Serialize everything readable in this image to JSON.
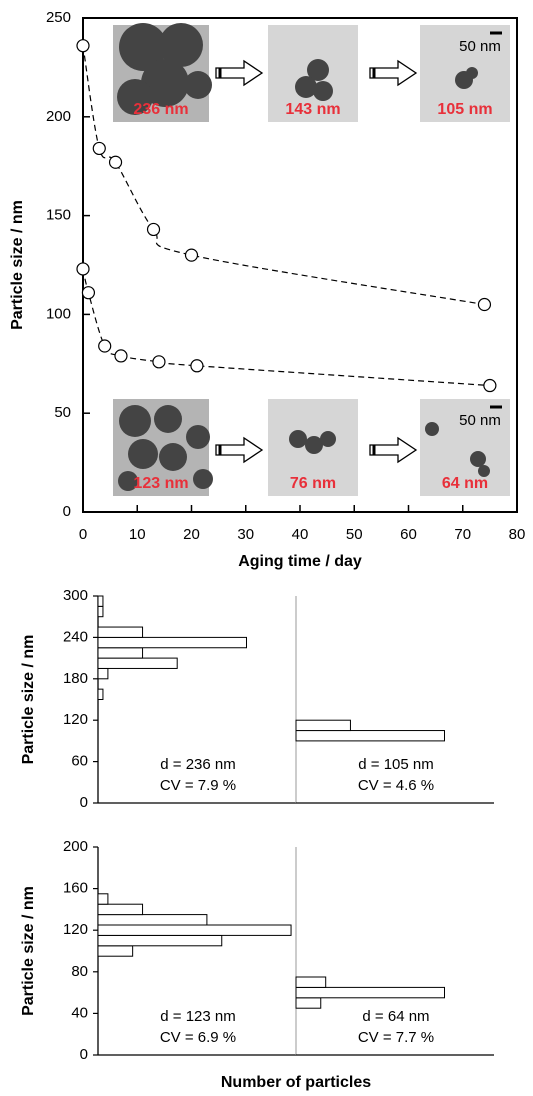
{
  "chart_data": [
    {
      "type": "scatter",
      "xlabel": "Aging time / day",
      "ylabel": "Particle size / nm",
      "xlim": [
        0,
        80
      ],
      "xticks": [
        0,
        10,
        20,
        30,
        40,
        50,
        60,
        70,
        80
      ],
      "ylim": [
        0,
        250
      ],
      "yticks": [
        0,
        50,
        100,
        150,
        200,
        250
      ],
      "line_style": "dashed",
      "series": [
        {
          "color": "#000000",
          "x": [
            0,
            3,
            6,
            13,
            20,
            74
          ],
          "values": [
            236,
            184,
            177,
            143,
            130,
            105
          ]
        },
        {
          "color": "#000000",
          "x": [
            0,
            1,
            4,
            7,
            14,
            21,
            75
          ],
          "values": [
            123,
            111,
            84,
            79,
            76,
            74,
            64
          ]
        }
      ],
      "insets": [
        {
          "label": "236 nm"
        },
        {
          "label": "143 nm"
        },
        {
          "label": "105 nm",
          "scale_bar": "50 nm"
        },
        {
          "label": "123 nm"
        },
        {
          "label": "76 nm"
        },
        {
          "label": "64 nm",
          "scale_bar": "50 nm"
        }
      ]
    },
    {
      "type": "histogram",
      "ylabel": "Particle size / nm",
      "ylim": [
        0,
        300
      ],
      "yticks": [
        0,
        60,
        120,
        180,
        240,
        300
      ],
      "xlim": [
        0,
        40
      ],
      "bins": [
        150,
        165,
        180,
        195,
        210,
        225,
        240,
        255,
        270,
        285,
        300
      ],
      "counts": [
        1,
        0,
        2,
        16,
        9,
        30,
        9,
        0,
        1,
        1
      ],
      "annotations": [
        "d = 236 nm",
        "CV = 7.9 %"
      ]
    },
    {
      "type": "histogram",
      "ylim": [
        0,
        300
      ],
      "xlim": [
        0,
        40
      ],
      "bins": [
        90,
        105,
        120
      ],
      "counts": [
        30,
        11
      ],
      "annotations": [
        "d = 105 nm",
        "CV = 4.6 %"
      ]
    },
    {
      "type": "histogram",
      "ylabel": "Particle size / nm",
      "xlabel": "Number of particles",
      "ylim": [
        0,
        200
      ],
      "yticks": [
        0,
        40,
        80,
        120,
        160,
        200
      ],
      "xlim": [
        0,
        40
      ],
      "bins": [
        95,
        105,
        115,
        125,
        135,
        145,
        155
      ],
      "counts": [
        7,
        25,
        39,
        22,
        9,
        2
      ],
      "annotations": [
        "d = 123 nm",
        "CV = 6.9 %"
      ]
    },
    {
      "type": "histogram",
      "ylim": [
        0,
        200
      ],
      "xlim": [
        0,
        40
      ],
      "bins": [
        45,
        55,
        65,
        75
      ],
      "counts": [
        5,
        30,
        6
      ],
      "annotations": [
        "d = 64 nm",
        "CV = 7.7 %"
      ]
    }
  ]
}
